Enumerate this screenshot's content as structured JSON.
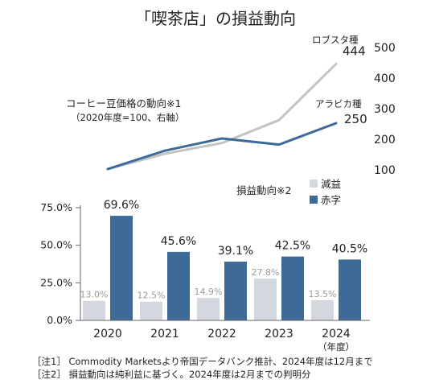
{
  "chart_data": [
    {
      "type": "line",
      "title": "「喫茶店」の損益動向",
      "label": "コーヒー豆価格の動向※1",
      "sublabel": "（2020年度=100、右軸）",
      "y_ticks": [
        "500",
        "400",
        "300",
        "200",
        "100"
      ],
      "ylim": [
        100,
        500
      ],
      "x": [
        "2020",
        "2021",
        "2022",
        "2023",
        "2024"
      ],
      "series": [
        {
          "name": "ロブスタ種",
          "values": [
            100,
            150,
            185,
            260,
            444
          ],
          "end_label": "444",
          "color": "#c4c4c4"
        },
        {
          "name": "アラビカ種",
          "values": [
            100,
            160,
            200,
            180,
            250
          ],
          "end_label": "250",
          "color": "#3e6a98"
        }
      ]
    },
    {
      "type": "bar",
      "label": "損益動向※2",
      "categories": [
        "2020",
        "2021",
        "2022",
        "2023",
        "2024"
      ],
      "last_category_note": "（年度）",
      "y_ticks": [
        "75.0%",
        "50.0%",
        "25.0%",
        "0.0%"
      ],
      "ylim": [
        0,
        75
      ],
      "series": [
        {
          "name": "減益",
          "values": [
            13.0,
            12.5,
            14.9,
            27.8,
            13.5
          ],
          "labels": [
            "13.0%",
            "12.5%",
            "14.9%",
            "27.8%",
            "13.5%"
          ],
          "color": "#d4d8de"
        },
        {
          "name": "赤字",
          "values": [
            69.6,
            45.6,
            39.1,
            42.5,
            40.5
          ],
          "labels": [
            "69.6%",
            "45.6%",
            "39.1%",
            "42.5%",
            "40.5%"
          ],
          "color": "#3e6a98"
        }
      ]
    }
  ],
  "notes": [
    "［注1］ Commodity Marketsより帝国データバンク推計、2024年度は12月まで",
    "［注2］ 損益動向は純利益に基づく。2024年度は2月までの判明分"
  ]
}
